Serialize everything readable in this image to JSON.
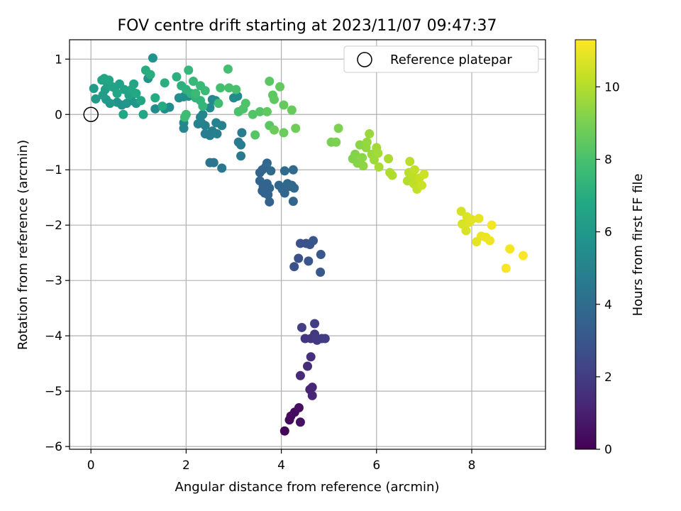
{
  "chart_data": {
    "type": "scatter",
    "title": "FOV centre drift starting at 2023/11/07 09:47:37",
    "xlabel": "Angular distance from reference (arcmin)",
    "ylabel": "Rotation from reference (arcmin)",
    "xlim": [
      -0.45,
      9.55
    ],
    "ylim": [
      -6.05,
      1.35
    ],
    "xticks": [
      0,
      2,
      4,
      6,
      8
    ],
    "yticks": [
      1,
      0,
      -1,
      -2,
      -3,
      -4,
      -5,
      -6
    ],
    "yticklabels": [
      "1",
      "0",
      "−1",
      "−2",
      "−3",
      "−4",
      "−5",
      "−6"
    ],
    "grid": true,
    "legend": {
      "position": "top-right",
      "entries": [
        "Reference platepar"
      ]
    },
    "reference_point": {
      "x": 0,
      "y": 0,
      "label": "Reference platepar"
    },
    "colorbar": {
      "label": "Hours from first FF file",
      "range": [
        0,
        11.3
      ],
      "ticks": [
        0,
        2,
        4,
        6,
        8,
        10
      ],
      "colormap": "viridis"
    },
    "points": [
      {
        "x": 4.07,
        "y": -5.72,
        "c": 0.1
      },
      {
        "x": 4.17,
        "y": -5.52,
        "c": 0.25
      },
      {
        "x": 4.2,
        "y": -5.45,
        "c": 0.3
      },
      {
        "x": 4.28,
        "y": -5.38,
        "c": 0.35
      },
      {
        "x": 4.37,
        "y": -5.3,
        "c": 0.45
      },
      {
        "x": 4.4,
        "y": -5.56,
        "c": 0.5
      },
      {
        "x": 4.6,
        "y": -4.97,
        "c": 1.1
      },
      {
        "x": 4.65,
        "y": -4.93,
        "c": 1.2
      },
      {
        "x": 4.65,
        "y": -5.08,
        "c": 1.25
      },
      {
        "x": 4.4,
        "y": -4.72,
        "c": 1.35
      },
      {
        "x": 4.55,
        "y": -4.55,
        "c": 1.45
      },
      {
        "x": 4.62,
        "y": -4.38,
        "c": 1.55
      },
      {
        "x": 4.5,
        "y": -4.05,
        "c": 1.75
      },
      {
        "x": 4.62,
        "y": -4.05,
        "c": 1.8
      },
      {
        "x": 4.7,
        "y": -3.97,
        "c": 1.85
      },
      {
        "x": 4.75,
        "y": -4.08,
        "c": 1.9
      },
      {
        "x": 4.85,
        "y": -4.05,
        "c": 1.95
      },
      {
        "x": 4.92,
        "y": -4.05,
        "c": 2.0
      },
      {
        "x": 4.7,
        "y": -3.78,
        "c": 2.05
      },
      {
        "x": 4.43,
        "y": -3.85,
        "c": 2.1
      },
      {
        "x": 4.36,
        "y": -2.6,
        "c": 2.75
      },
      {
        "x": 4.27,
        "y": -2.75,
        "c": 2.8
      },
      {
        "x": 4.4,
        "y": -2.33,
        "c": 2.85
      },
      {
        "x": 4.52,
        "y": -2.33,
        "c": 2.9
      },
      {
        "x": 4.6,
        "y": -2.35,
        "c": 2.95
      },
      {
        "x": 4.67,
        "y": -2.28,
        "c": 3.0
      },
      {
        "x": 4.57,
        "y": -2.65,
        "c": 3.05
      },
      {
        "x": 4.83,
        "y": -2.53,
        "c": 3.1
      },
      {
        "x": 4.82,
        "y": -2.85,
        "c": 3.15
      },
      {
        "x": 3.55,
        "y": -1.05,
        "c": 3.6
      },
      {
        "x": 3.6,
        "y": -1.0,
        "c": 3.7
      },
      {
        "x": 3.67,
        "y": -0.95,
        "c": 3.75
      },
      {
        "x": 3.7,
        "y": -0.88,
        "c": 3.8
      },
      {
        "x": 3.78,
        "y": -1.02,
        "c": 3.85
      },
      {
        "x": 3.55,
        "y": -1.2,
        "c": 3.65
      },
      {
        "x": 3.62,
        "y": -1.3,
        "c": 3.6
      },
      {
        "x": 3.6,
        "y": -1.38,
        "c": 3.55
      },
      {
        "x": 3.7,
        "y": -1.25,
        "c": 3.6
      },
      {
        "x": 3.75,
        "y": -1.33,
        "c": 3.65
      },
      {
        "x": 3.72,
        "y": -1.45,
        "c": 3.6
      },
      {
        "x": 3.75,
        "y": -1.58,
        "c": 3.55
      },
      {
        "x": 3.65,
        "y": -1.42,
        "c": 3.6
      },
      {
        "x": 3.95,
        "y": -1.28,
        "c": 3.7
      },
      {
        "x": 4.02,
        "y": -1.35,
        "c": 3.75
      },
      {
        "x": 4.07,
        "y": -1.42,
        "c": 3.7
      },
      {
        "x": 4.13,
        "y": -1.25,
        "c": 3.8
      },
      {
        "x": 4.17,
        "y": -1.3,
        "c": 3.75
      },
      {
        "x": 4.22,
        "y": -1.28,
        "c": 3.85
      },
      {
        "x": 4.27,
        "y": -1.33,
        "c": 3.8
      },
      {
        "x": 4.25,
        "y": -1.57,
        "c": 3.7
      },
      {
        "x": 4.07,
        "y": -1.02,
        "c": 3.9
      },
      {
        "x": 4.25,
        "y": -1.0,
        "c": 3.95
      },
      {
        "x": 2.5,
        "y": -0.87,
        "c": 4.4
      },
      {
        "x": 2.58,
        "y": -0.87,
        "c": 4.45
      },
      {
        "x": 2.75,
        "y": -0.97,
        "c": 4.5
      },
      {
        "x": 3.15,
        "y": -0.75,
        "c": 4.55
      },
      {
        "x": 3.1,
        "y": -0.5,
        "c": 4.6
      },
      {
        "x": 3.15,
        "y": -0.55,
        "c": 4.65
      },
      {
        "x": 3.17,
        "y": -0.33,
        "c": 4.7
      },
      {
        "x": 2.4,
        "y": -0.35,
        "c": 4.75
      },
      {
        "x": 2.5,
        "y": -0.38,
        "c": 4.8
      },
      {
        "x": 2.55,
        "y": -0.3,
        "c": 4.85
      },
      {
        "x": 2.65,
        "y": -0.35,
        "c": 4.9
      },
      {
        "x": 2.75,
        "y": -0.2,
        "c": 4.95
      },
      {
        "x": 2.63,
        "y": -0.15,
        "c": 5.0
      },
      {
        "x": 2.4,
        "y": -0.2,
        "c": 4.9
      },
      {
        "x": 2.32,
        "y": -0.15,
        "c": 4.95
      },
      {
        "x": 2.25,
        "y": -0.17,
        "c": 5.0
      },
      {
        "x": 2.35,
        "y": 0.0,
        "c": 5.05
      },
      {
        "x": 2.3,
        "y": -0.05,
        "c": 5.1
      },
      {
        "x": 1.95,
        "y": -0.25,
        "c": 5.15
      },
      {
        "x": 1.95,
        "y": -0.15,
        "c": 5.2
      },
      {
        "x": 2.5,
        "y": 0.12,
        "c": 5.25
      },
      {
        "x": 2.55,
        "y": 0.27,
        "c": 5.3
      },
      {
        "x": 2.62,
        "y": 0.25,
        "c": 5.35
      },
      {
        "x": 3.08,
        "y": 0.33,
        "c": 5.3
      },
      {
        "x": 3.0,
        "y": 0.3,
        "c": 5.4
      },
      {
        "x": 1.35,
        "y": 0.1,
        "c": 5.45
      },
      {
        "x": 1.55,
        "y": 0.1,
        "c": 5.5
      },
      {
        "x": 1.65,
        "y": 0.13,
        "c": 5.5
      },
      {
        "x": 1.85,
        "y": 0.3,
        "c": 5.55
      },
      {
        "x": 1.95,
        "y": 0.32,
        "c": 5.6
      },
      {
        "x": 2.05,
        "y": 0.33,
        "c": 5.6
      },
      {
        "x": 1.3,
        "y": 1.02,
        "c": 5.7
      },
      {
        "x": 1.2,
        "y": 0.65,
        "c": 5.75
      },
      {
        "x": 0.65,
        "y": 0.17,
        "c": 5.8
      },
      {
        "x": 0.55,
        "y": 0.22,
        "c": 5.85
      },
      {
        "x": 0.75,
        "y": 0.2,
        "c": 5.9
      },
      {
        "x": 0.85,
        "y": 0.25,
        "c": 5.95
      },
      {
        "x": 0.95,
        "y": 0.2,
        "c": 6.0
      },
      {
        "x": 0.4,
        "y": 0.2,
        "c": 6.05
      },
      {
        "x": 0.32,
        "y": 0.27,
        "c": 6.1
      },
      {
        "x": 0.1,
        "y": 0.28,
        "c": 6.15
      },
      {
        "x": 0.06,
        "y": 0.47,
        "c": 6.2
      },
      {
        "x": 0.25,
        "y": 0.35,
        "c": 6.25
      },
      {
        "x": 0.3,
        "y": 0.45,
        "c": 6.3
      },
      {
        "x": 0.35,
        "y": 0.55,
        "c": 6.35
      },
      {
        "x": 0.5,
        "y": 0.48,
        "c": 6.4
      },
      {
        "x": 0.6,
        "y": 0.55,
        "c": 6.45
      },
      {
        "x": 0.7,
        "y": 0.45,
        "c": 6.5
      },
      {
        "x": 0.8,
        "y": 0.35,
        "c": 6.55
      },
      {
        "x": 0.9,
        "y": 0.55,
        "c": 6.6
      },
      {
        "x": 1.05,
        "y": 0.25,
        "c": 6.65
      },
      {
        "x": 1.1,
        "y": 0.0,
        "c": 6.7
      },
      {
        "x": 0.68,
        "y": 0.0,
        "c": 6.75
      },
      {
        "x": 0.45,
        "y": 0.5,
        "c": 6.5
      },
      {
        "x": 0.23,
        "y": 0.62,
        "c": 6.55
      },
      {
        "x": 0.28,
        "y": 0.65,
        "c": 6.6
      },
      {
        "x": 0.38,
        "y": 0.62,
        "c": 6.65
      },
      {
        "x": 0.55,
        "y": 0.38,
        "c": 6.7
      },
      {
        "x": 0.85,
        "y": 0.45,
        "c": 6.75
      },
      {
        "x": 0.95,
        "y": 0.38,
        "c": 6.8
      },
      {
        "x": 1.5,
        "y": 0.15,
        "c": 6.85
      },
      {
        "x": 1.35,
        "y": 0.3,
        "c": 6.9
      },
      {
        "x": 1.15,
        "y": 0.8,
        "c": 6.95
      },
      {
        "x": 1.25,
        "y": 0.72,
        "c": 7.0
      },
      {
        "x": 1.55,
        "y": 0.57,
        "c": 7.05
      },
      {
        "x": 1.8,
        "y": 0.68,
        "c": 7.1
      },
      {
        "x": 1.9,
        "y": 0.52,
        "c": 7.15
      },
      {
        "x": 2.0,
        "y": 0.45,
        "c": 7.2
      },
      {
        "x": 2.1,
        "y": 0.38,
        "c": 7.25
      },
      {
        "x": 2.2,
        "y": 0.3,
        "c": 7.3
      },
      {
        "x": 2.3,
        "y": 0.25,
        "c": 7.35
      },
      {
        "x": 2.35,
        "y": 0.15,
        "c": 7.4
      },
      {
        "x": 2.05,
        "y": 0.8,
        "c": 7.45
      },
      {
        "x": 2.15,
        "y": 0.6,
        "c": 7.5
      },
      {
        "x": 2.3,
        "y": 0.52,
        "c": 7.55
      },
      {
        "x": 2.4,
        "y": 0.43,
        "c": 7.6
      },
      {
        "x": 2.2,
        "y": 0.38,
        "c": 7.65
      },
      {
        "x": 2.0,
        "y": 0.0,
        "c": 7.7
      },
      {
        "x": 1.97,
        "y": -0.05,
        "c": 7.75
      },
      {
        "x": 2.68,
        "y": 0.2,
        "c": 7.8
      },
      {
        "x": 2.72,
        "y": 0.48,
        "c": 7.85
      },
      {
        "x": 2.88,
        "y": 0.82,
        "c": 7.9
      },
      {
        "x": 2.9,
        "y": 0.48,
        "c": 7.95
      },
      {
        "x": 3.05,
        "y": 0.45,
        "c": 8.0
      },
      {
        "x": 3.1,
        "y": 0.05,
        "c": 8.05
      },
      {
        "x": 3.2,
        "y": 0.1,
        "c": 8.1
      },
      {
        "x": 3.25,
        "y": 0.2,
        "c": 8.15
      },
      {
        "x": 3.4,
        "y": 0.0,
        "c": 8.2
      },
      {
        "x": 3.55,
        "y": 0.05,
        "c": 8.25
      },
      {
        "x": 3.45,
        "y": -0.37,
        "c": 8.3
      },
      {
        "x": 3.75,
        "y": -0.2,
        "c": 8.35
      },
      {
        "x": 3.75,
        "y": 0.6,
        "c": 8.4
      },
      {
        "x": 3.82,
        "y": 0.35,
        "c": 8.45
      },
      {
        "x": 3.85,
        "y": 0.27,
        "c": 8.5
      },
      {
        "x": 3.97,
        "y": 0.5,
        "c": 8.55
      },
      {
        "x": 4.05,
        "y": 0.17,
        "c": 8.6
      },
      {
        "x": 4.22,
        "y": 0.08,
        "c": 8.65
      },
      {
        "x": 4.05,
        "y": -0.33,
        "c": 8.7
      },
      {
        "x": 3.85,
        "y": -0.28,
        "c": 8.75
      },
      {
        "x": 4.3,
        "y": -0.25,
        "c": 8.8
      },
      {
        "x": 3.7,
        "y": 0.05,
        "c": 8.5
      },
      {
        "x": 5.05,
        "y": -0.5,
        "c": 9.0
      },
      {
        "x": 5.15,
        "y": -0.5,
        "c": 9.05
      },
      {
        "x": 5.2,
        "y": -0.25,
        "c": 9.1
      },
      {
        "x": 5.5,
        "y": -0.8,
        "c": 9.15
      },
      {
        "x": 5.55,
        "y": -0.72,
        "c": 9.2
      },
      {
        "x": 5.6,
        "y": -0.88,
        "c": 9.25
      },
      {
        "x": 5.65,
        "y": -0.55,
        "c": 9.3
      },
      {
        "x": 5.7,
        "y": -0.78,
        "c": 9.35
      },
      {
        "x": 5.72,
        "y": -0.93,
        "c": 9.4
      },
      {
        "x": 5.78,
        "y": -0.6,
        "c": 9.45
      },
      {
        "x": 5.8,
        "y": -0.5,
        "c": 9.5
      },
      {
        "x": 5.85,
        "y": -0.35,
        "c": 9.55
      },
      {
        "x": 5.9,
        "y": -0.72,
        "c": 9.6
      },
      {
        "x": 5.95,
        "y": -0.82,
        "c": 9.65
      },
      {
        "x": 6.0,
        "y": -0.6,
        "c": 9.7
      },
      {
        "x": 6.03,
        "y": -0.7,
        "c": 9.75
      },
      {
        "x": 6.05,
        "y": -0.95,
        "c": 9.8
      },
      {
        "x": 6.25,
        "y": -0.8,
        "c": 9.85
      },
      {
        "x": 6.28,
        "y": -1.05,
        "c": 9.9
      },
      {
        "x": 6.33,
        "y": -1.1,
        "c": 9.95
      },
      {
        "x": 6.65,
        "y": -1.2,
        "c": 10.0
      },
      {
        "x": 6.68,
        "y": -1.05,
        "c": 10.05
      },
      {
        "x": 6.7,
        "y": -0.85,
        "c": 10.1
      },
      {
        "x": 6.75,
        "y": -1.1,
        "c": 10.15
      },
      {
        "x": 6.78,
        "y": -1.25,
        "c": 10.2
      },
      {
        "x": 6.8,
        "y": -1.0,
        "c": 10.25
      },
      {
        "x": 6.85,
        "y": -1.35,
        "c": 10.3
      },
      {
        "x": 6.9,
        "y": -1.15,
        "c": 10.35
      },
      {
        "x": 6.95,
        "y": -1.28,
        "c": 10.4
      },
      {
        "x": 7.0,
        "y": -1.08,
        "c": 10.45
      },
      {
        "x": 7.78,
        "y": -1.75,
        "c": 10.55
      },
      {
        "x": 7.8,
        "y": -1.98,
        "c": 10.6
      },
      {
        "x": 7.88,
        "y": -2.1,
        "c": 10.65
      },
      {
        "x": 7.9,
        "y": -1.85,
        "c": 10.7
      },
      {
        "x": 7.95,
        "y": -1.95,
        "c": 10.75
      },
      {
        "x": 8.0,
        "y": -1.9,
        "c": 10.8
      },
      {
        "x": 8.1,
        "y": -2.3,
        "c": 10.85
      },
      {
        "x": 8.15,
        "y": -1.88,
        "c": 10.9
      },
      {
        "x": 8.2,
        "y": -2.2,
        "c": 10.95
      },
      {
        "x": 8.3,
        "y": -2.22,
        "c": 11.0
      },
      {
        "x": 8.38,
        "y": -2.28,
        "c": 11.05
      },
      {
        "x": 8.42,
        "y": -2.0,
        "c": 11.1
      },
      {
        "x": 8.8,
        "y": -2.43,
        "c": 11.15
      },
      {
        "x": 8.72,
        "y": -2.78,
        "c": 11.2
      },
      {
        "x": 9.08,
        "y": -2.55,
        "c": 11.25
      }
    ]
  }
}
